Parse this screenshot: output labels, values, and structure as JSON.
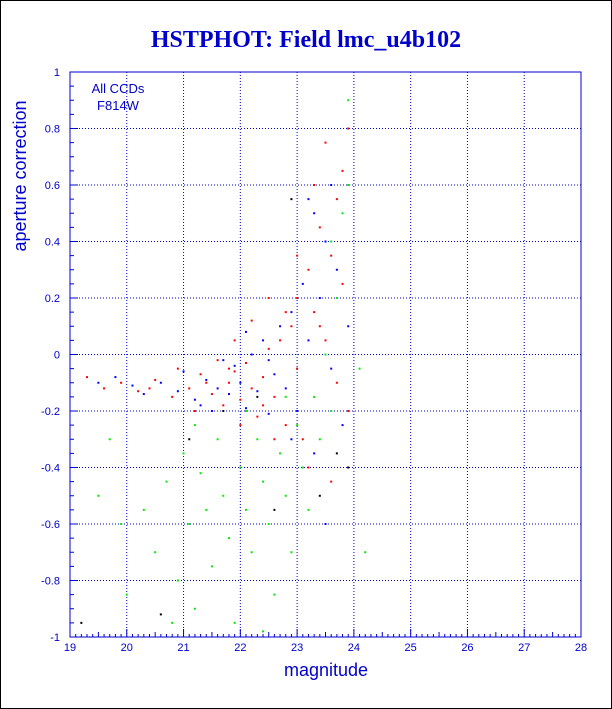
{
  "chart_data": {
    "type": "scatter",
    "title": "HSTPHOT: Field lmc_u4b102",
    "xlabel": "magnitude",
    "ylabel": "aperture correction",
    "xlim": [
      19,
      28
    ],
    "ylim": [
      -1,
      1
    ],
    "x_ticks": [
      19,
      20,
      21,
      22,
      23,
      24,
      25,
      26,
      27,
      28
    ],
    "y_ticks": [
      -1,
      -0.8,
      -0.6,
      -0.4,
      -0.2,
      0,
      0.2,
      0.4,
      0.6,
      0.8,
      1
    ],
    "grid": true,
    "annotations": [
      "All CCDs",
      "F814W"
    ],
    "colors": {
      "axis": "#0000cc",
      "grid": "#0000cc",
      "title": "#0000cc",
      "series_red": "#ff0000",
      "series_blue": "#0000ff",
      "series_green": "#00ee00",
      "series_black": "#000000"
    },
    "series": [
      {
        "color": "#ff0000",
        "points": [
          [
            19.3,
            -0.08
          ],
          [
            19.6,
            -0.12
          ],
          [
            19.9,
            -0.1
          ],
          [
            20.2,
            -0.13
          ],
          [
            20.5,
            -0.09
          ],
          [
            20.8,
            -0.15
          ],
          [
            20.9,
            -0.05
          ],
          [
            21.1,
            -0.12
          ],
          [
            21.2,
            -0.2
          ],
          [
            21.3,
            -0.07
          ],
          [
            21.5,
            -0.14
          ],
          [
            21.6,
            -0.02
          ],
          [
            21.7,
            -0.18
          ],
          [
            21.8,
            -0.1
          ],
          [
            21.9,
            -0.06
          ],
          [
            22.0,
            -0.16
          ],
          [
            22.1,
            -0.03
          ],
          [
            22.2,
            -0.12
          ],
          [
            22.3,
            -0.22
          ],
          [
            22.4,
            -0.08
          ],
          [
            22.5,
            0.02
          ],
          [
            22.6,
            -0.15
          ],
          [
            22.7,
            0.05
          ],
          [
            22.8,
            -0.25
          ],
          [
            22.9,
            0.1
          ],
          [
            23.0,
            -0.05
          ],
          [
            23.0,
            0.2
          ],
          [
            23.1,
            -0.3
          ],
          [
            23.2,
            0.3
          ],
          [
            23.3,
            0.15
          ],
          [
            23.3,
            0.6
          ],
          [
            23.4,
            0.45
          ],
          [
            23.5,
            0.05
          ],
          [
            23.5,
            0.75
          ],
          [
            23.6,
            0.35
          ],
          [
            23.7,
            -0.1
          ],
          [
            23.7,
            0.55
          ],
          [
            23.8,
            0.25
          ],
          [
            23.9,
            -0.2
          ],
          [
            23.9,
            0.8
          ],
          [
            22.2,
            0.12
          ],
          [
            22.5,
            0.2
          ],
          [
            21.9,
            0.05
          ],
          [
            21.4,
            -0.1
          ],
          [
            20.4,
            -0.12
          ],
          [
            22.0,
            -0.25
          ],
          [
            22.6,
            -0.3
          ],
          [
            23.2,
            -0.4
          ],
          [
            23.6,
            -0.45
          ],
          [
            21.8,
            -0.05
          ],
          [
            22.4,
            -0.18
          ],
          [
            23.0,
            0.35
          ],
          [
            23.4,
            0.1
          ],
          [
            22.8,
            0.15
          ],
          [
            23.8,
            0.65
          ]
        ]
      },
      {
        "color": "#0000ff",
        "points": [
          [
            19.5,
            -0.1
          ],
          [
            19.8,
            -0.08
          ],
          [
            20.1,
            -0.11
          ],
          [
            20.3,
            -0.14
          ],
          [
            20.6,
            -0.1
          ],
          [
            20.9,
            -0.13
          ],
          [
            21.0,
            -0.06
          ],
          [
            21.2,
            -0.16
          ],
          [
            21.4,
            -0.09
          ],
          [
            21.5,
            -0.2
          ],
          [
            21.6,
            -0.12
          ],
          [
            21.8,
            -0.14
          ],
          [
            21.9,
            -0.04
          ],
          [
            22.0,
            -0.1
          ],
          [
            22.1,
            -0.19
          ],
          [
            22.2,
            0.0
          ],
          [
            22.3,
            -0.13
          ],
          [
            22.4,
            0.05
          ],
          [
            22.5,
            -0.21
          ],
          [
            22.6,
            -0.07
          ],
          [
            22.7,
            0.1
          ],
          [
            22.8,
            -0.12
          ],
          [
            22.9,
            0.15
          ],
          [
            23.0,
            -0.2
          ],
          [
            23.1,
            0.25
          ],
          [
            23.2,
            0.05
          ],
          [
            23.3,
            0.5
          ],
          [
            23.3,
            -0.35
          ],
          [
            23.4,
            0.2
          ],
          [
            23.5,
            0.4
          ],
          [
            23.6,
            -0.05
          ],
          [
            23.7,
            0.3
          ],
          [
            23.8,
            -0.25
          ],
          [
            23.9,
            0.1
          ],
          [
            22.1,
            0.08
          ],
          [
            21.7,
            -0.02
          ],
          [
            23.2,
            0.55
          ],
          [
            23.6,
            0.6
          ],
          [
            22.9,
            -0.3
          ],
          [
            23.5,
            -0.6
          ],
          [
            22.5,
            -0.02
          ],
          [
            21.3,
            -0.18
          ]
        ]
      },
      {
        "color": "#00ee00",
        "points": [
          [
            19.5,
            -0.5
          ],
          [
            19.9,
            -0.6
          ],
          [
            20.0,
            -0.85
          ],
          [
            20.3,
            -0.55
          ],
          [
            20.5,
            -0.7
          ],
          [
            20.7,
            -0.45
          ],
          [
            20.9,
            -0.8
          ],
          [
            21.0,
            -0.35
          ],
          [
            21.1,
            -0.6
          ],
          [
            21.2,
            -0.9
          ],
          [
            21.3,
            -0.42
          ],
          [
            21.4,
            -0.55
          ],
          [
            21.5,
            -0.75
          ],
          [
            21.6,
            -0.3
          ],
          [
            21.7,
            -0.5
          ],
          [
            21.8,
            -0.65
          ],
          [
            21.9,
            -0.95
          ],
          [
            22.0,
            -0.4
          ],
          [
            22.1,
            -0.55
          ],
          [
            22.2,
            -0.7
          ],
          [
            22.3,
            -0.3
          ],
          [
            22.4,
            -0.45
          ],
          [
            22.5,
            -0.6
          ],
          [
            22.6,
            -0.85
          ],
          [
            22.7,
            -0.35
          ],
          [
            22.8,
            -0.5
          ],
          [
            22.9,
            -0.7
          ],
          [
            23.0,
            -0.25
          ],
          [
            23.1,
            -0.4
          ],
          [
            23.2,
            -0.55
          ],
          [
            23.3,
            -0.15
          ],
          [
            23.4,
            -0.3
          ],
          [
            23.5,
            0.0
          ],
          [
            23.6,
            -0.2
          ],
          [
            23.7,
            0.2
          ],
          [
            23.8,
            0.5
          ],
          [
            23.9,
            0.9
          ],
          [
            24.1,
            -0.05
          ],
          [
            24.2,
            -0.7
          ],
          [
            21.2,
            -0.25
          ],
          [
            22.1,
            -0.2
          ],
          [
            22.8,
            -0.15
          ],
          [
            23.6,
            0.4
          ],
          [
            23.9,
            0.6
          ],
          [
            20.8,
            -0.95
          ],
          [
            22.4,
            -0.98
          ],
          [
            19.7,
            -0.3
          ]
        ]
      },
      {
        "color": "#000000",
        "points": [
          [
            19.2,
            -0.95
          ],
          [
            20.6,
            -0.92
          ],
          [
            21.1,
            -0.3
          ],
          [
            21.7,
            -0.2
          ],
          [
            22.3,
            -0.15
          ],
          [
            22.9,
            0.55
          ],
          [
            23.4,
            -0.5
          ],
          [
            23.7,
            -0.35
          ],
          [
            23.9,
            -0.4
          ],
          [
            22.6,
            -0.55
          ]
        ]
      }
    ]
  }
}
